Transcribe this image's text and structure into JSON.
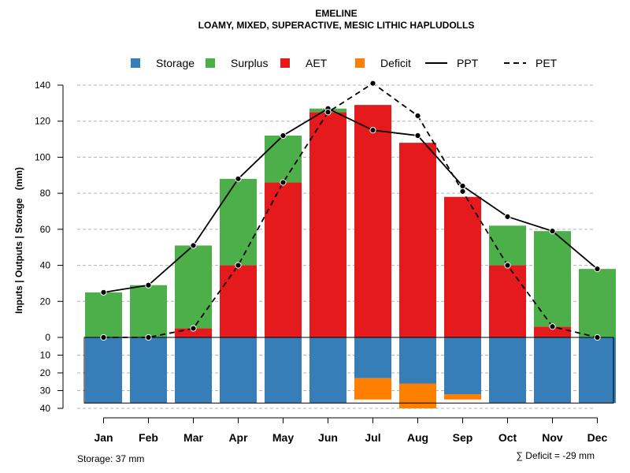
{
  "chart_data": {
    "type": "bar",
    "title": "EMELINE",
    "subtitle": "LOAMY, MIXED, SUPERACTIVE, MESIC LITHIC HAPLUDOLLS",
    "ylabel": "Inputs | Outputs | Storage   (mm)",
    "categories": [
      "Jan",
      "Feb",
      "Mar",
      "Apr",
      "May",
      "Jun",
      "Jul",
      "Aug",
      "Sep",
      "Oct",
      "Nov",
      "Dec"
    ],
    "ylim": [
      0,
      140
    ],
    "yticks": [
      0,
      20,
      40,
      60,
      80,
      100,
      120,
      140
    ],
    "storage_ylim": [
      0,
      40
    ],
    "storage_ticks": [
      10,
      20,
      30,
      40
    ],
    "series": [
      {
        "name": "AET",
        "type": "bar",
        "color": "#E41A1C",
        "values": [
          0,
          0,
          5,
          40,
          86,
          125,
          129,
          108,
          78,
          40,
          6,
          0
        ]
      },
      {
        "name": "Surplus",
        "type": "bar",
        "color": "#4DAF4A",
        "values": [
          25,
          29,
          46,
          48,
          26,
          2,
          0,
          0,
          0,
          22,
          53,
          38
        ]
      },
      {
        "name": "Storage",
        "type": "bar",
        "color": "#377EB8",
        "values": [
          37,
          37,
          37,
          37,
          37,
          37,
          23,
          26,
          32,
          37,
          37,
          37
        ]
      },
      {
        "name": "Deficit",
        "type": "bar",
        "color": "#FF7F00",
        "values": [
          0,
          0,
          0,
          0,
          0,
          0,
          12,
          14,
          3,
          0,
          0,
          0
        ]
      },
      {
        "name": "PPT",
        "type": "line",
        "style": "solid",
        "color": "#000000",
        "values": [
          25,
          29,
          51,
          88,
          112,
          127,
          115,
          112,
          84,
          67,
          59,
          38
        ]
      },
      {
        "name": "PET",
        "type": "line",
        "style": "dashed",
        "color": "#000000",
        "values": [
          0,
          0,
          5,
          40,
          86,
          125,
          141,
          123,
          81,
          40,
          6,
          0
        ]
      }
    ],
    "legend": [
      {
        "name": "Storage",
        "symbol": "square",
        "color": "#377EB8"
      },
      {
        "name": "Surplus",
        "symbol": "square",
        "color": "#4DAF4A"
      },
      {
        "name": "AET",
        "symbol": "square",
        "color": "#E41A1C"
      },
      {
        "name": "Deficit",
        "symbol": "square",
        "color": "#FF7F00"
      },
      {
        "name": "PPT",
        "symbol": "solid-line",
        "color": "#000000"
      },
      {
        "name": "PET",
        "symbol": "dashed-line",
        "color": "#000000"
      }
    ],
    "legend_position": "top-center",
    "grid": true,
    "storage_note": "Storage: 37 mm",
    "deficit_note": "∑ Deficit = -29 mm"
  }
}
